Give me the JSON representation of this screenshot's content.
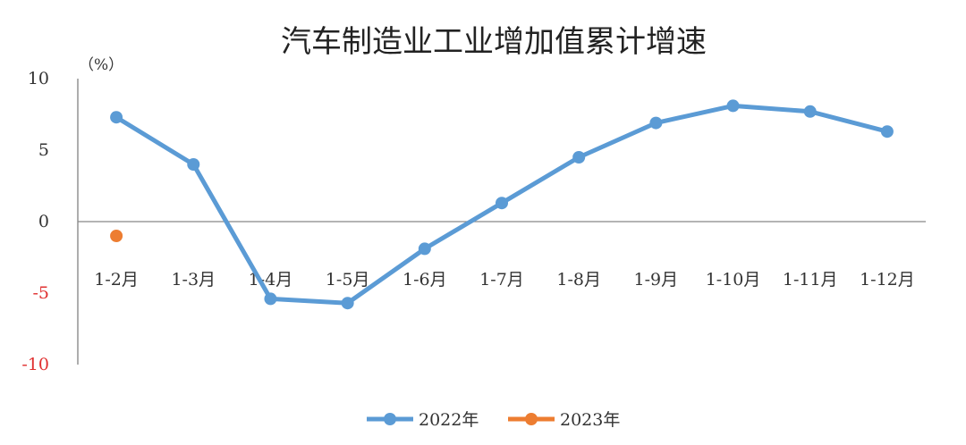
{
  "chart_data": {
    "type": "line",
    "title": "汽车制造业工业增加值累计增速",
    "unit_label": "（%）",
    "categories": [
      "1-2月",
      "1-3月",
      "1-4月",
      "1-5月",
      "1-6月",
      "1-7月",
      "1-8月",
      "1-9月",
      "1-10月",
      "1-11月",
      "1-12月"
    ],
    "ylim": [
      -10,
      10
    ],
    "yticks": [
      10,
      5,
      0,
      -5,
      -10
    ],
    "ytick_labels": [
      "10",
      "5",
      "0",
      "-5",
      "-10"
    ],
    "negative_tick_color": "#e03030",
    "grid": false,
    "legend_position": "bottom",
    "series": [
      {
        "name": "2022年",
        "color": "#5b9bd5",
        "values": [
          7.3,
          4.0,
          -5.4,
          -5.7,
          -1.9,
          1.3,
          4.5,
          6.9,
          8.1,
          7.7,
          6.3
        ]
      },
      {
        "name": "2023年",
        "color": "#ed7d31",
        "values": [
          -1.0,
          null,
          null,
          null,
          null,
          null,
          null,
          null,
          null,
          null,
          null
        ]
      }
    ]
  }
}
